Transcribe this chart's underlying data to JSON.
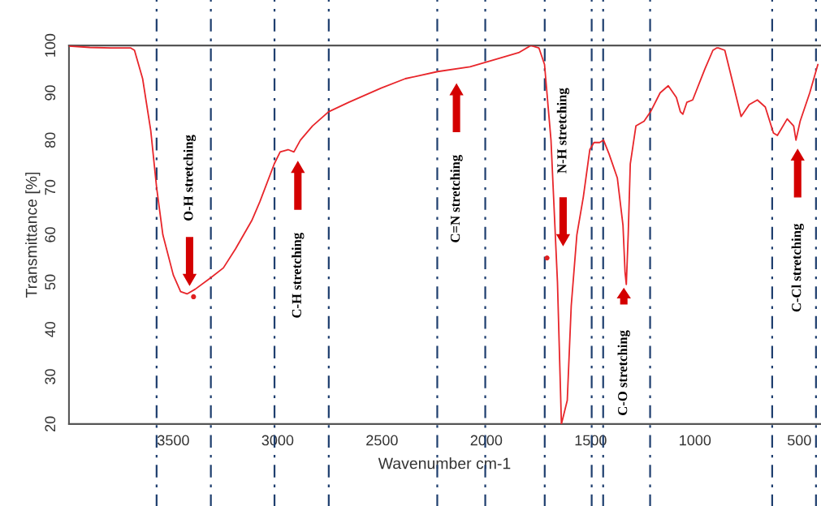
{
  "chart_data": {
    "type": "line",
    "xlabel": "Wavenumber cm-1",
    "ylabel": "Transmittance [%]",
    "xlim": [
      4000,
      400
    ],
    "ylim": [
      20,
      100
    ],
    "xticks": [
      3500,
      3000,
      2500,
      2000,
      1500,
      1000,
      500
    ],
    "yticks": [
      20,
      30,
      40,
      50,
      60,
      70,
      80,
      90,
      100
    ],
    "grid": false,
    "line_style": "solid",
    "marker": "none",
    "series": [
      {
        "color": "#e8262b",
        "x": [
          4000,
          3900,
          3800,
          3705,
          3686,
          3647,
          3608,
          3580,
          3550,
          3500,
          3465,
          3434,
          3395,
          3318,
          3260,
          3202,
          3124,
          3085,
          3016,
          2988,
          2950,
          2922,
          2891,
          2833,
          2756,
          2659,
          2504,
          2388,
          2233,
          2078,
          1961,
          1845,
          1787,
          1748,
          1721,
          1690,
          1659,
          1640,
          1612,
          1593,
          1566,
          1535,
          1504,
          1484,
          1457,
          1438,
          1411,
          1372,
          1345,
          1335,
          1329,
          1320,
          1310,
          1283,
          1244,
          1213,
          1167,
          1128,
          1089,
          1070,
          1058,
          1039,
          1011,
          953,
          914,
          895,
          888,
          857,
          818,
          779,
          740,
          701,
          663,
          624,
          605,
          558,
          527,
          516,
          496,
          450,
          411
        ],
        "values": [
          99.9,
          99.6,
          99.5,
          99.5,
          99,
          93,
          82,
          70,
          60,
          51.5,
          48,
          47.5,
          48.5,
          51,
          53,
          57,
          63,
          67,
          75,
          77.5,
          78,
          77.5,
          80,
          83,
          86,
          88,
          91,
          93,
          94.5,
          95.5,
          97,
          98.5,
          100,
          99.5,
          96,
          80,
          50,
          20,
          25,
          45,
          60,
          68,
          78,
          79.5,
          79.5,
          80,
          77,
          72,
          62,
          52,
          49.5,
          60,
          75,
          83,
          84,
          86,
          90,
          91.5,
          89,
          86,
          85.5,
          88,
          88.5,
          95,
          99,
          99.5,
          99.5,
          99,
          92,
          85,
          87.5,
          88.5,
          87,
          81.5,
          81,
          84.5,
          83,
          80,
          84,
          90,
          96
        ]
      },
      {
        "type": "scatter",
        "color": "#e02020",
        "marker": "circle",
        "x": [
          3403,
          1709
        ],
        "values": [
          46.9,
          55.1
        ]
      }
    ],
    "ref_lines": [
      {
        "axis": "x",
        "value": 3580,
        "color": "#1f3f6f",
        "line_style": "dashed"
      },
      {
        "axis": "x",
        "value": 3320,
        "color": "#1f3f6f",
        "line_style": "dashed"
      },
      {
        "axis": "x",
        "value": 3015,
        "color": "#1f3f6f",
        "line_style": "dashed"
      },
      {
        "axis": "x",
        "value": 2755,
        "color": "#1f3f6f",
        "line_style": "dashed"
      },
      {
        "axis": "x",
        "value": 2235,
        "color": "#1f3f6f",
        "line_style": "dashed"
      },
      {
        "axis": "x",
        "value": 2005,
        "color": "#1f3f6f",
        "line_style": "dashed"
      },
      {
        "axis": "x",
        "value": 1720,
        "color": "#1f3f6f",
        "line_style": "dashed"
      },
      {
        "axis": "x",
        "value": 1495,
        "color": "#1f3f6f",
        "line_style": "dashed"
      },
      {
        "axis": "x",
        "value": 1440,
        "color": "#1f3f6f",
        "line_style": "dashed"
      },
      {
        "axis": "x",
        "value": 1215,
        "color": "#1f3f6f",
        "line_style": "dashed"
      },
      {
        "axis": "x",
        "value": 630,
        "color": "#1f3f6f",
        "line_style": "dashed"
      },
      {
        "axis": "x",
        "value": 420,
        "color": "#1f3f6f",
        "line_style": "dashed"
      }
    ],
    "annotations": [
      "O-H stretching",
      "C-H stretching",
      "C=N stretching",
      "N-H stretching",
      "C-O stretching",
      "C-Cl stretching"
    ]
  }
}
